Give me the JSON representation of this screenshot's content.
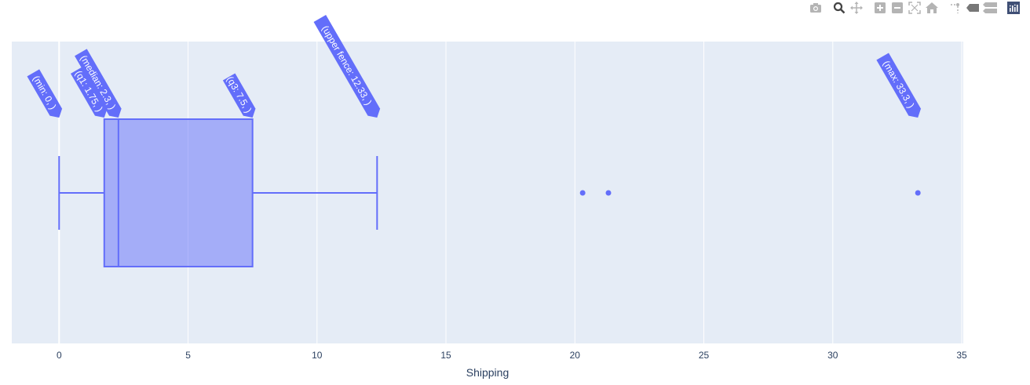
{
  "modebar": {
    "buttons": [
      {
        "name": "download-plot-button",
        "icon": "camera-icon",
        "title": "Download plot as a png"
      },
      {
        "name": "zoom-button",
        "icon": "zoom-icon",
        "title": "Zoom",
        "active": true
      },
      {
        "name": "pan-button",
        "icon": "pan-icon",
        "title": "Pan"
      },
      {
        "name": "zoom-in-button",
        "icon": "plus-square-icon",
        "title": "Zoom in"
      },
      {
        "name": "zoom-out-button",
        "icon": "minus-square-icon",
        "title": "Zoom out"
      },
      {
        "name": "autoscale-button",
        "icon": "autoscale-icon",
        "title": "Autoscale"
      },
      {
        "name": "reset-axes-button",
        "icon": "home-icon",
        "title": "Reset axes"
      },
      {
        "name": "spike-lines-button",
        "icon": "spikeline-icon",
        "title": "Toggle Spike Lines"
      },
      {
        "name": "hover-closest-button",
        "icon": "tag-icon",
        "title": "Show closest data on hover"
      },
      {
        "name": "hover-compare-button",
        "icon": "tags-icon",
        "title": "Compare data on hover"
      },
      {
        "name": "plotly-logo-button",
        "icon": "plotly-logo-icon",
        "title": "Produced with Plotly"
      }
    ]
  },
  "colors": {
    "plot_bg": "#e5ecf6",
    "grid": "#ffffff",
    "box_line": "#636efa",
    "box_fill": "#a1a9f7",
    "annotation_bg": "#636efa",
    "annotation_text": "#ffffff",
    "axis_text": "#2a3f5f",
    "modebar_icon": "#b4b4b4",
    "modebar_active": "#444444",
    "plotly_logo_bg": "#3f4f75"
  },
  "chart_data": {
    "type": "box",
    "orientation": "horizontal",
    "title": "",
    "xlabel": "Shipping",
    "ylabel": "",
    "xlim": [
      -1.8,
      35.1
    ],
    "x_ticks": [
      0,
      5,
      10,
      15,
      20,
      25,
      30,
      35
    ],
    "x_tick_labels": [
      "0",
      "5",
      "10",
      "15",
      "20",
      "25",
      "30",
      "35"
    ],
    "grid": true,
    "series": [
      {
        "name": "Shipping",
        "min": 0,
        "q1": 1.75,
        "median": 2.3,
        "q3": 7.5,
        "upper_fence": 12.33,
        "max": 33.3,
        "outliers": [
          20.3,
          21.3,
          33.3
        ]
      }
    ],
    "annotations": [
      {
        "label": "(min: 0, )",
        "x": 0
      },
      {
        "label": "(q1: 1.75, )",
        "x": 1.75
      },
      {
        "label": "(median: 2.3, )",
        "x": 2.3
      },
      {
        "label": "(q3: 7.5, )",
        "x": 7.5
      },
      {
        "label": "(upper fence: 12.33, )",
        "x": 12.33
      },
      {
        "label": "(max: 33.3, )",
        "x": 33.3
      }
    ]
  }
}
